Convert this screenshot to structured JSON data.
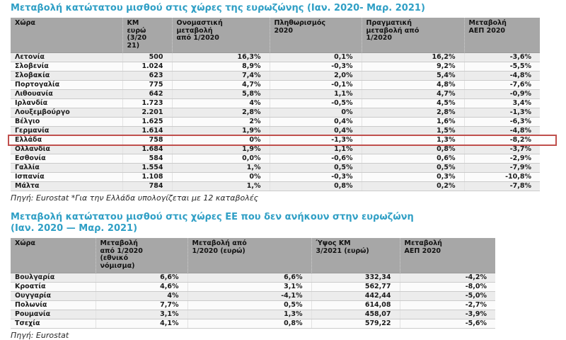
{
  "colors": {
    "title_accent": "#2F9FC5",
    "header_background": "#A7A7A7",
    "row_band": "#ECECEC",
    "highlight_border": "#C0504D"
  },
  "chart_data": [
    {
      "type": "table",
      "title": "Μεταβολή κατώτατου μισθού στις χώρες της ευρωζώνης (Ιαν. 2020- Μαρ. 2021)",
      "columns": [
        "Χώρα",
        "ΚΜ\nευρώ\n(3/20\n21)",
        "Ονομαστική\nμεταβολή\nαπό 1/2020",
        "Πληθωρισμός\n2020",
        "Πραγματική\nμεταβολή από\n1/2020",
        "Μεταβολή\nΑΕΠ 2020"
      ],
      "rows": [
        [
          "Λετονία",
          "500",
          "16,3%",
          "0,1%",
          "16,2%",
          "-3,6%"
        ],
        [
          "Σλοβενία",
          "1.024",
          "8,9%",
          "-0,3%",
          "9,2%",
          "-5,5%"
        ],
        [
          "Σλοβακία",
          "623",
          "7,4%",
          "2,0%",
          "5,4%",
          "-4,8%"
        ],
        [
          "Πορτογαλία",
          "775",
          "4,7%",
          "-0,1%",
          "4,8%",
          "-7,6%"
        ],
        [
          "Λιθουανία",
          "642",
          "5,8%",
          "1,1%",
          "4,7%",
          "-0,9%"
        ],
        [
          "Ιρλανδία",
          "1.723",
          "4%",
          "-0,5%",
          "4,5%",
          "3,4%"
        ],
        [
          "Λουξεμβούργο",
          "2.201",
          "2,8%",
          "0%",
          "2,8%",
          "-1,3%"
        ],
        [
          "Βέλγιο",
          "1.625",
          "2%",
          "0,4%",
          "1,6%",
          "-6,3%"
        ],
        [
          "Γερμανία",
          "1.614",
          "1,9%",
          "0,4%",
          "1,5%",
          "-4,8%"
        ],
        [
          "Ελλάδα",
          "758",
          "0%",
          "-1,3%",
          "1,3%",
          "-8,2%"
        ],
        [
          "Ολλανδία",
          "1.684",
          "1,9%",
          "1,1%",
          "0,8%",
          "-3,7%"
        ],
        [
          "Εσθονία",
          "584",
          "0,0%",
          "-0,6%",
          "0,6%",
          "-2,9%"
        ],
        [
          "Γαλλία",
          "1.554",
          "1,%",
          "0,5%",
          "0,5%",
          "-7,9%"
        ],
        [
          "Ισπανία",
          "1.108",
          "0%",
          "-0,3%",
          "0,3%",
          "-10,8%"
        ],
        [
          "Μάλτα",
          "784",
          "1,%",
          "0,8%",
          "0,2%",
          "-7,8%"
        ]
      ],
      "highlighted_row": "Ελλάδα",
      "highlighted_row_index": 9,
      "footnote": "Πηγή: Eurostat *Για την Ελλάδα υπολογίζεται με 12 καταβολές"
    },
    {
      "type": "table",
      "title_line1": "Μεταβολή κατώτατου μισθού στις χώρες ΕΕ που δεν ανήκουν  στην ευρωζώνη",
      "title_line2": "(Ιαν. 2020 — Μαρ. 2021)",
      "columns": [
        "Χώρα",
        "Μεταβολή\nαπό 1/2020\n(εθνικό\nνόμισμα)",
        "Μεταβολή από\n1/2020 (ευρώ)",
        "Ύψος ΚΜ\n3/2021 (ευρώ)",
        "Μεταβολή\nΑΕΠ 2020"
      ],
      "rows": [
        [
          "Βουλγαρία",
          "6,6%",
          "6,6%",
          "332,34",
          "-4,2%"
        ],
        [
          "Κροατία",
          "4,6%",
          "3,1%",
          "562,77",
          "-8,0%"
        ],
        [
          "Ουγγαρία",
          "4%",
          "-4,1%",
          "442,44",
          "-5,0%"
        ],
        [
          "Πολωνία",
          "7,7%",
          "0,5%",
          "614,08",
          "-2,7%"
        ],
        [
          "Ρουμανία",
          "3,1%",
          "1,3%",
          "458,07",
          "-3,9%"
        ],
        [
          "Τσεχία",
          "4,1%",
          "0,8%",
          "579,22",
          "-5,6%"
        ]
      ],
      "footnote": "Πηγή: Eurostat"
    }
  ]
}
